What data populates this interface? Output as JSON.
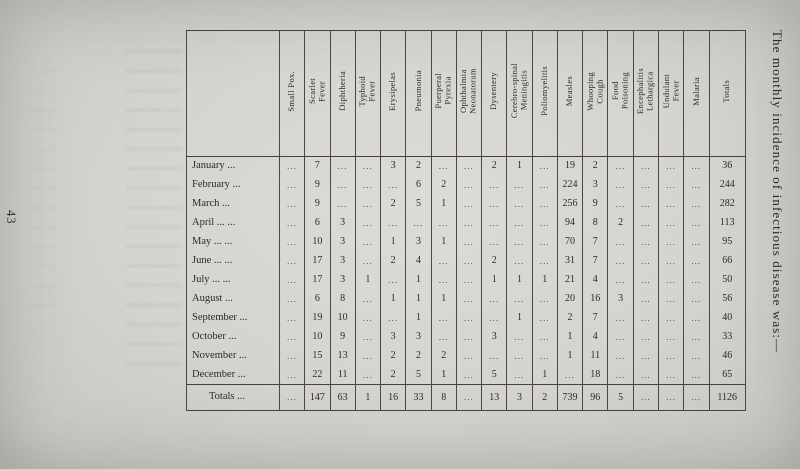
{
  "page": {
    "page_number": "43",
    "side_caption": "The monthly incidence of infectious disease was:—"
  },
  "table": {
    "columns": [
      "Small Pox.",
      "Scarlet\nFever",
      "Diphtheria",
      "Typhoid\nFever",
      "Erysipelas",
      "Pneumonia",
      "Puerperal\nPyrexia",
      "Ophthalmia\nNeonatorum",
      "Dysentery",
      "Cerebro-spinal\nMeningitis",
      "Poliomyelitis",
      "Measles",
      "Whooping\nCough",
      "Food\nPoisoning",
      "Encephalitis\nLethargica",
      "Undulant\nFever",
      "Malaria",
      "Totals"
    ],
    "rows": [
      {
        "label": "January ...",
        "values": [
          "...",
          "7",
          "...",
          "...",
          "3",
          "2",
          "...",
          "...",
          "2",
          "1",
          "...",
          "19",
          "2",
          "...",
          "...",
          "...",
          "...",
          "36"
        ]
      },
      {
        "label": "February ...",
        "values": [
          "...",
          "9",
          "...",
          "...",
          "...",
          "6",
          "2",
          "...",
          "...",
          "...",
          "...",
          "224",
          "3",
          "...",
          "...",
          "...",
          "...",
          "244"
        ]
      },
      {
        "label": "March ...",
        "values": [
          "...",
          "9",
          "...",
          "...",
          "2",
          "5",
          "1",
          "...",
          "...",
          "...",
          "...",
          "256",
          "9",
          "...",
          "...",
          "...",
          "...",
          "282"
        ]
      },
      {
        "label": "April ... ...",
        "values": [
          "...",
          "6",
          "3",
          "...",
          "...",
          "...",
          "...",
          "...",
          "...",
          "...",
          "...",
          "94",
          "8",
          "2",
          "...",
          "...",
          "...",
          "113"
        ]
      },
      {
        "label": "May ... ...",
        "values": [
          "...",
          "10",
          "3",
          "...",
          "1",
          "3",
          "1",
          "...",
          "...",
          "...",
          "...",
          "70",
          "7",
          "...",
          "...",
          "...",
          "...",
          "95"
        ]
      },
      {
        "label": "June ... ...",
        "values": [
          "...",
          "17",
          "3",
          "...",
          "2",
          "4",
          "...",
          "...",
          "2",
          "...",
          "...",
          "31",
          "7",
          "...",
          "...",
          "...",
          "...",
          "66"
        ]
      },
      {
        "label": "July ... ...",
        "values": [
          "...",
          "17",
          "3",
          "1",
          "...",
          "1",
          "...",
          "...",
          "1",
          "1",
          "1",
          "21",
          "4",
          "...",
          "...",
          "...",
          "...",
          "50"
        ]
      },
      {
        "label": "August ...",
        "values": [
          "...",
          "6",
          "8",
          "...",
          "1",
          "1",
          "1",
          "...",
          "...",
          "...",
          "...",
          "20",
          "16",
          "3",
          "...",
          "...",
          "...",
          "56"
        ]
      },
      {
        "label": "September ...",
        "values": [
          "...",
          "19",
          "10",
          "...",
          "...",
          "1",
          "...",
          "...",
          "...",
          "1",
          "...",
          "2",
          "7",
          "...",
          "...",
          "...",
          "...",
          "40"
        ]
      },
      {
        "label": "October ...",
        "values": [
          "...",
          "10",
          "9",
          "...",
          "3",
          "3",
          "...",
          "...",
          "3",
          "...",
          "...",
          "1",
          "4",
          "...",
          "...",
          "...",
          "...",
          "33"
        ]
      },
      {
        "label": "November ...",
        "values": [
          "...",
          "15",
          "13",
          "...",
          "2",
          "2",
          "2",
          "...",
          "...",
          "...",
          "...",
          "1",
          "11",
          "...",
          "...",
          "...",
          "...",
          "46"
        ]
      },
      {
        "label": "December ...",
        "values": [
          "...",
          "22",
          "11",
          "...",
          "2",
          "5",
          "1",
          "...",
          "5",
          "...",
          "1",
          "...",
          "18",
          "...",
          "...",
          "...",
          "...",
          "65"
        ]
      }
    ],
    "totals": {
      "label": "Totals ...",
      "values": [
        "...",
        "147",
        "63",
        "1",
        "16",
        "33",
        "8",
        "...",
        "13",
        "3",
        "2",
        "739",
        "96",
        "5",
        "...",
        "...",
        "...",
        "1126"
      ]
    }
  }
}
